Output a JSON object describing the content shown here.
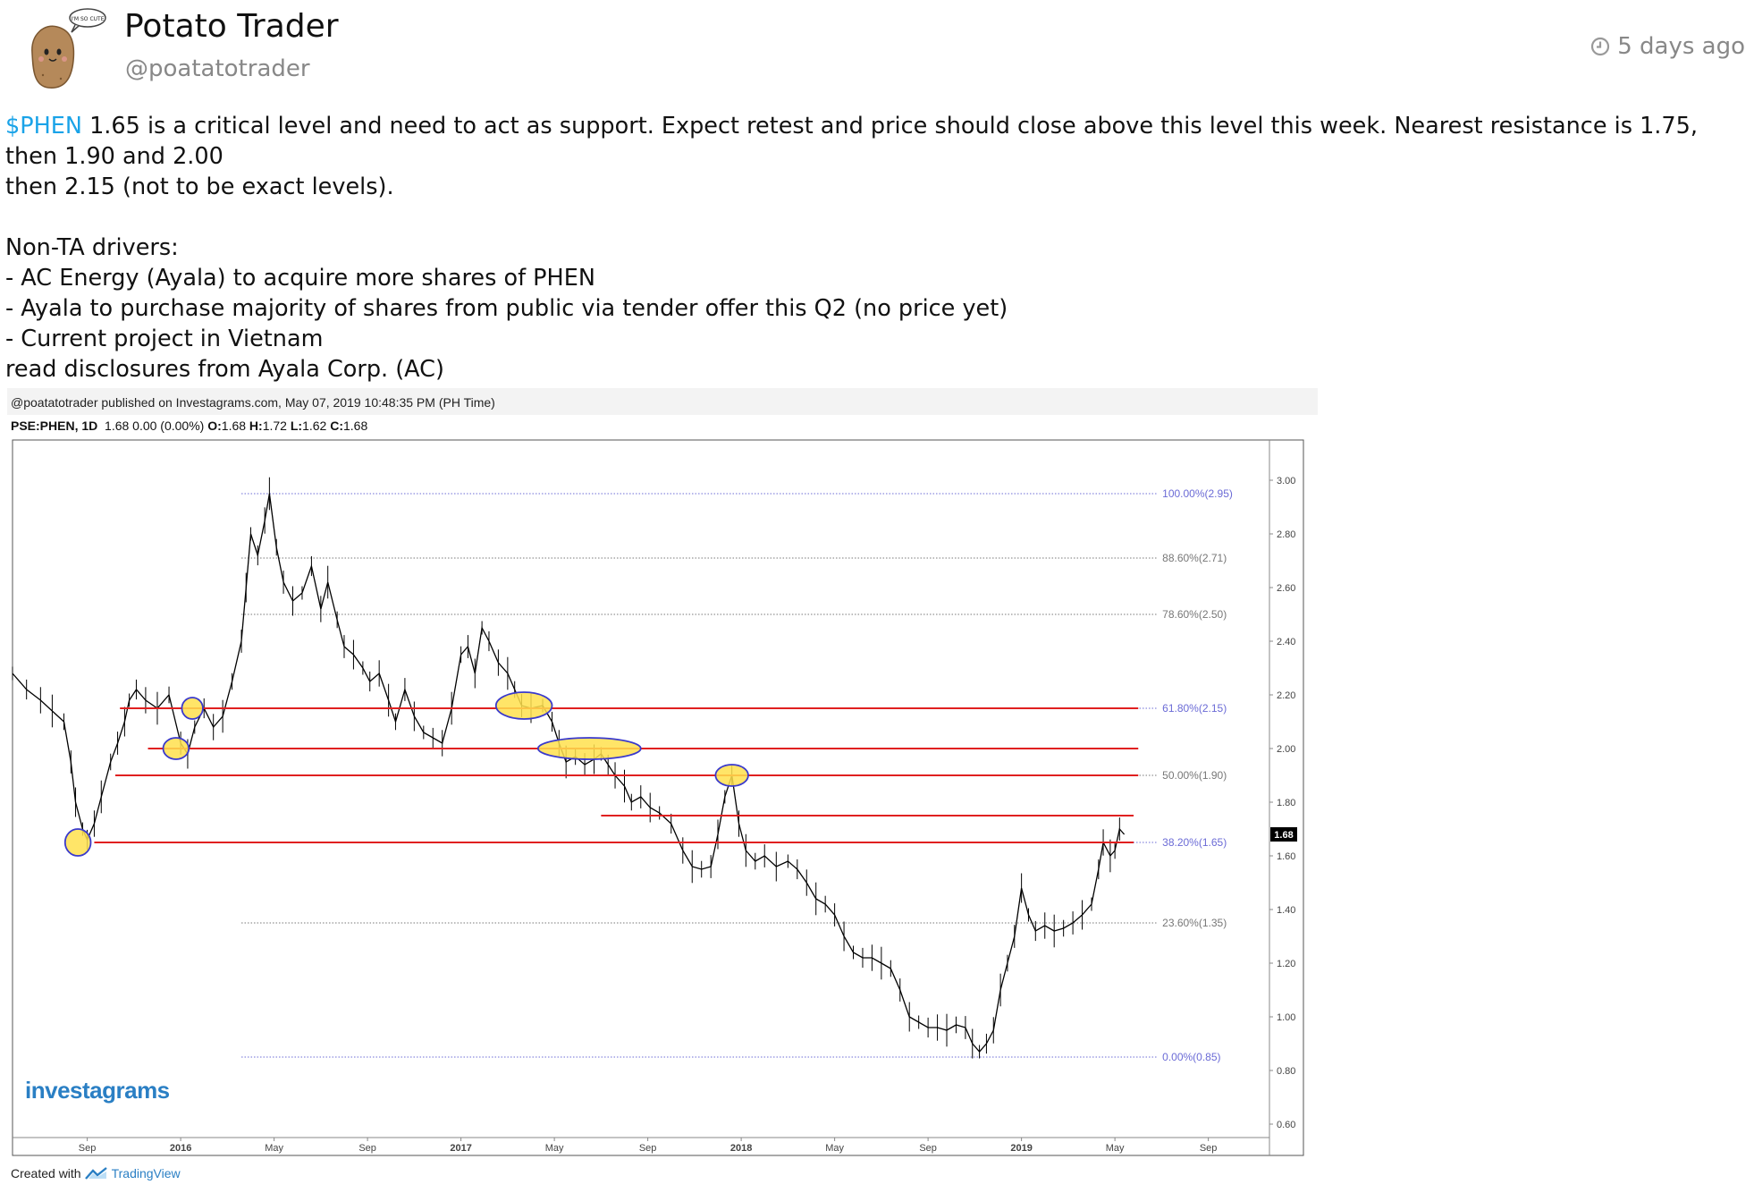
{
  "author": {
    "name": "Potato Trader",
    "handle": "@poatatotrader",
    "avatar_bubble_text": "I'M SO CUTE"
  },
  "timestamp": "5 days ago",
  "post": {
    "ticker": "$PHEN",
    "line1_rest": " 1.65 is a critical level and need to act as support. Expect retest and price should close above this level this week. Nearest resistance is 1.75, then 1.90 and 2.00",
    "line2": "then 2.15 (not to be exact levels).",
    "drivers_heading": "Non-TA drivers:",
    "drivers": [
      "- AC Energy (Ayala) to acquire more shares of PHEN",
      "- Ayala to purchase majority of shares from public via tender offer this Q2 (no price yet)",
      "- Current project in Vietnam"
    ],
    "footer_line": "read disclosures from Ayala Corp. (AC)"
  },
  "chart_image": {
    "published_text": "@poatatotrader published on Investagrams.com, May 07, 2019 10:48:35 PM (PH Time)",
    "symbol": "PSE:PHEN, 1D",
    "quote": "1.68 0.00 (0.00%)",
    "o_label": "O:",
    "o_value": "1.68",
    "h_label": "H:",
    "h_value": "1.72",
    "l_label": "L:",
    "l_value": "1.62",
    "c_label": "C:",
    "c_value": "1.68",
    "brand": "investagrams",
    "created_with": "Created with",
    "tradingview": "TradingView",
    "last_price_label": "1.68",
    "colors": {
      "price": "#000000",
      "support": "#e02020",
      "fib": "#6b6bd6",
      "highlight": "#ffe14d",
      "circle": "#3a3acc"
    }
  },
  "chart_data": {
    "type": "line",
    "title": "",
    "xlabel": "",
    "ylabel": "",
    "ylim": [
      0.55,
      3.15
    ],
    "y_ticks": [
      3.0,
      2.8,
      2.6,
      2.4,
      2.2,
      2.0,
      1.8,
      1.6,
      1.4,
      1.2,
      1.0,
      0.8,
      0.6
    ],
    "y_tick_labels": [
      "3.00",
      "2.80",
      "2.60",
      "2.40",
      "2.20",
      "2.00",
      "1.80",
      "1.60",
      "1.40",
      "1.20",
      "1.00",
      "0.80",
      "0.60"
    ],
    "x_ticks": [
      {
        "label": "Sep",
        "t": 2.0
      },
      {
        "label": "2016",
        "t": 6.0
      },
      {
        "label": "May",
        "t": 10.0
      },
      {
        "label": "Sep",
        "t": 14.0
      },
      {
        "label": "2017",
        "t": 18.0
      },
      {
        "label": "May",
        "t": 22.0
      },
      {
        "label": "Sep",
        "t": 26.0
      },
      {
        "label": "2018",
        "t": 30.0
      },
      {
        "label": "May",
        "t": 34.0
      },
      {
        "label": "Sep",
        "t": 38.0
      },
      {
        "label": "2019",
        "t": 42.0
      },
      {
        "label": "May",
        "t": 46.0
      },
      {
        "label": "Sep",
        "t": 50.0
      }
    ],
    "xlim": [
      -1.2,
      53.0
    ],
    "series": [
      {
        "values": [
          [
            -1.2,
            2.28
          ],
          [
            -0.6,
            2.22
          ],
          [
            0.0,
            2.18
          ],
          [
            0.5,
            2.14
          ],
          [
            1.0,
            2.1
          ],
          [
            1.3,
            1.95
          ],
          [
            1.5,
            1.8
          ],
          [
            1.8,
            1.7
          ],
          [
            2.0,
            1.66
          ],
          [
            2.3,
            1.72
          ],
          [
            2.6,
            1.82
          ],
          [
            3.0,
            1.95
          ],
          [
            3.3,
            2.02
          ],
          [
            3.6,
            2.1
          ],
          [
            3.8,
            2.18
          ],
          [
            4.1,
            2.22
          ],
          [
            4.5,
            2.18
          ],
          [
            5.0,
            2.15
          ],
          [
            5.5,
            2.2
          ],
          [
            6.0,
            2.02
          ],
          [
            6.3,
            1.98
          ],
          [
            6.6,
            2.08
          ],
          [
            7.0,
            2.15
          ],
          [
            7.4,
            2.08
          ],
          [
            7.8,
            2.12
          ],
          [
            8.2,
            2.25
          ],
          [
            8.6,
            2.4
          ],
          [
            8.8,
            2.6
          ],
          [
            9.0,
            2.8
          ],
          [
            9.3,
            2.72
          ],
          [
            9.6,
            2.85
          ],
          [
            9.8,
            2.95
          ],
          [
            10.1,
            2.75
          ],
          [
            10.4,
            2.62
          ],
          [
            10.8,
            2.55
          ],
          [
            11.2,
            2.58
          ],
          [
            11.6,
            2.68
          ],
          [
            12.0,
            2.52
          ],
          [
            12.3,
            2.62
          ],
          [
            12.7,
            2.48
          ],
          [
            13.0,
            2.38
          ],
          [
            13.4,
            2.35
          ],
          [
            13.8,
            2.3
          ],
          [
            14.1,
            2.25
          ],
          [
            14.5,
            2.28
          ],
          [
            14.9,
            2.18
          ],
          [
            15.2,
            2.1
          ],
          [
            15.6,
            2.22
          ],
          [
            16.0,
            2.12
          ],
          [
            16.4,
            2.06
          ],
          [
            16.8,
            2.04
          ],
          [
            17.2,
            2.02
          ],
          [
            17.6,
            2.15
          ],
          [
            18.0,
            2.35
          ],
          [
            18.3,
            2.38
          ],
          [
            18.6,
            2.28
          ],
          [
            18.9,
            2.45
          ],
          [
            19.2,
            2.4
          ],
          [
            19.6,
            2.32
          ],
          [
            20.0,
            2.28
          ],
          [
            20.3,
            2.22
          ],
          [
            20.6,
            2.16
          ],
          [
            21.0,
            2.15
          ],
          [
            21.5,
            2.16
          ],
          [
            21.9,
            2.1
          ],
          [
            22.2,
            2.02
          ],
          [
            22.5,
            1.95
          ],
          [
            22.9,
            1.97
          ],
          [
            23.3,
            1.94
          ],
          [
            23.7,
            1.96
          ],
          [
            24.0,
            1.98
          ],
          [
            24.3,
            1.94
          ],
          [
            24.6,
            1.9
          ],
          [
            25.0,
            1.86
          ],
          [
            25.3,
            1.8
          ],
          [
            25.7,
            1.82
          ],
          [
            26.1,
            1.78
          ],
          [
            26.5,
            1.76
          ],
          [
            27.0,
            1.72
          ],
          [
            27.5,
            1.62
          ],
          [
            27.9,
            1.56
          ],
          [
            28.3,
            1.55
          ],
          [
            28.7,
            1.56
          ],
          [
            29.0,
            1.68
          ],
          [
            29.3,
            1.82
          ],
          [
            29.6,
            1.9
          ],
          [
            29.9,
            1.72
          ],
          [
            30.2,
            1.62
          ],
          [
            30.6,
            1.58
          ],
          [
            31.0,
            1.6
          ],
          [
            31.5,
            1.56
          ],
          [
            32.0,
            1.58
          ],
          [
            32.4,
            1.55
          ],
          [
            32.8,
            1.5
          ],
          [
            33.2,
            1.44
          ],
          [
            33.6,
            1.42
          ],
          [
            34.0,
            1.38
          ],
          [
            34.4,
            1.3
          ],
          [
            34.8,
            1.24
          ],
          [
            35.2,
            1.22
          ],
          [
            35.6,
            1.22
          ],
          [
            36.0,
            1.2
          ],
          [
            36.4,
            1.18
          ],
          [
            36.8,
            1.1
          ],
          [
            37.2,
            1.0
          ],
          [
            37.6,
            0.98
          ],
          [
            38.0,
            0.96
          ],
          [
            38.4,
            0.96
          ],
          [
            38.8,
            0.95
          ],
          [
            39.2,
            0.97
          ],
          [
            39.6,
            0.96
          ],
          [
            39.9,
            0.9
          ],
          [
            40.2,
            0.87
          ],
          [
            40.5,
            0.9
          ],
          [
            40.8,
            0.95
          ],
          [
            41.1,
            1.1
          ],
          [
            41.4,
            1.2
          ],
          [
            41.7,
            1.3
          ],
          [
            42.0,
            1.48
          ],
          [
            42.3,
            1.38
          ],
          [
            42.6,
            1.32
          ],
          [
            43.0,
            1.34
          ],
          [
            43.4,
            1.32
          ],
          [
            43.8,
            1.33
          ],
          [
            44.2,
            1.35
          ],
          [
            44.6,
            1.38
          ],
          [
            45.0,
            1.42
          ],
          [
            45.3,
            1.55
          ],
          [
            45.5,
            1.65
          ],
          [
            45.8,
            1.6
          ],
          [
            46.0,
            1.62
          ],
          [
            46.2,
            1.7
          ],
          [
            46.4,
            1.68
          ]
        ]
      }
    ],
    "fib_levels": [
      {
        "label": "100.00%(2.95)",
        "value": 2.95
      },
      {
        "label": "88.60%(2.71)",
        "value": 2.71
      },
      {
        "label": "78.60%(2.50)",
        "value": 2.5
      },
      {
        "label": "61.80%(2.15)",
        "value": 2.15
      },
      {
        "label": "50.00%(1.90)",
        "value": 1.9
      },
      {
        "label": "38.20%(1.65)",
        "value": 1.65
      },
      {
        "label": "23.60%(1.35)",
        "value": 1.35
      },
      {
        "label": "0.00%(0.85)",
        "value": 0.85
      }
    ],
    "support_lines": [
      {
        "value": 2.15,
        "from": 3.4,
        "to": 47.0
      },
      {
        "value": 2.0,
        "from": 4.6,
        "to": 47.0
      },
      {
        "value": 1.9,
        "from": 3.2,
        "to": 47.0
      },
      {
        "value": 1.75,
        "from": 24.0,
        "to": 46.8
      },
      {
        "value": 1.65,
        "from": 2.3,
        "to": 46.8
      }
    ],
    "highlights": [
      {
        "t": 1.6,
        "value": 1.65,
        "rx": 0.55,
        "ry": 0.05
      },
      {
        "t": 6.5,
        "value": 2.15,
        "rx": 0.45,
        "ry": 0.04
      },
      {
        "t": 5.8,
        "value": 2.0,
        "rx": 0.55,
        "ry": 0.04
      },
      {
        "t": 20.7,
        "value": 2.16,
        "rx": 1.2,
        "ry": 0.05
      },
      {
        "t": 23.5,
        "value": 2.0,
        "rx": 2.2,
        "ry": 0.04
      },
      {
        "t": 29.6,
        "value": 1.9,
        "rx": 0.7,
        "ry": 0.04
      }
    ]
  }
}
